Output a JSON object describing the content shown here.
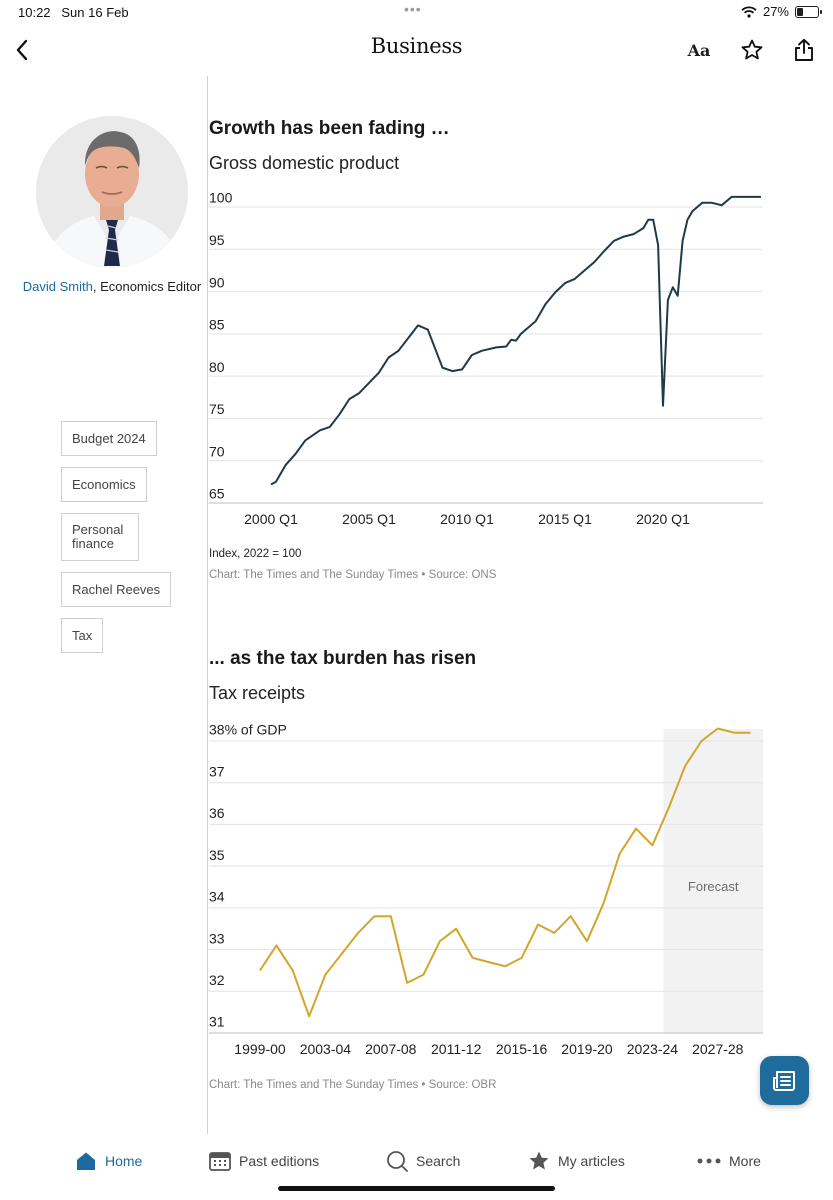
{
  "status_bar": {
    "time": "10:22",
    "date": "Sun 16 Feb",
    "battery": "27%"
  },
  "nav": {
    "title": "Business",
    "font_label": "Aa"
  },
  "author": {
    "name": "David Smith",
    "role": ", Economics Editor"
  },
  "tags": [
    "Budget 2024",
    "Economics",
    "Personal finance",
    "Rachel Reeves",
    "Tax"
  ],
  "charts": [
    {
      "title": "Growth has been fading …",
      "subtitle": "Gross domestic product",
      "note": "Index, 2022 = 100",
      "source": "Chart: The Times and The Sunday Times • Source: ONS"
    },
    {
      "title": "... as the tax burden has risen",
      "subtitle": "Tax receipts",
      "source": "Chart: The Times and The Sunday Times • Source: OBR",
      "forecast_label": "Forecast"
    }
  ],
  "chart_data": [
    {
      "type": "line",
      "title": "Gross domestic product",
      "ylabel": "Index, 2022 = 100",
      "ylim": [
        65,
        100
      ],
      "yticks": [
        "65",
        "70",
        "75",
        "80",
        "85",
        "90",
        "95",
        "100"
      ],
      "xticks": [
        "2000 Q1",
        "2005 Q1",
        "2010 Q1",
        "2015 Q1",
        "2020 Q1"
      ],
      "grid": true,
      "color": "#1e3a47",
      "series": [
        {
          "x": [
            2000.0,
            2000.25,
            2000.75,
            2001.25,
            2001.75,
            2002.5,
            2003.0,
            2003.5,
            2004.0,
            2004.5,
            2005.0,
            2005.5,
            2006.0,
            2006.5,
            2007.0,
            2007.5,
            2008.0,
            2008.25,
            2008.75,
            2009.25,
            2009.75,
            2010.25,
            2010.75,
            2011.5,
            2012.0,
            2012.25,
            2012.5,
            2012.75,
            2013.0,
            2013.5,
            2014.0,
            2014.5,
            2015.0,
            2015.5,
            2016.0,
            2016.5,
            2017.0,
            2017.5,
            2018.0,
            2018.5,
            2019.0,
            2019.25,
            2019.5,
            2019.75,
            2020.0,
            2020.25,
            2020.5,
            2020.75,
            2021.0,
            2021.25,
            2021.5,
            2021.75,
            2022.0,
            2022.5,
            2023.0,
            2023.5,
            2024.0,
            2024.25,
            2024.5,
            2025.0
          ],
          "y": [
            67.2,
            67.5,
            69.5,
            70.8,
            72.4,
            73.6,
            74.0,
            75.5,
            77.3,
            78.0,
            79.2,
            80.4,
            82.2,
            83.0,
            84.5,
            86.0,
            85.5,
            84.0,
            81.0,
            80.6,
            80.8,
            82.5,
            83.0,
            83.4,
            83.5,
            84.3,
            84.2,
            85.0,
            85.5,
            86.5,
            88.5,
            89.9,
            91.0,
            91.5,
            92.5,
            93.5,
            94.8,
            96.0,
            96.5,
            96.8,
            97.5,
            98.5,
            98.5,
            95.5,
            76.5,
            89.0,
            90.5,
            89.5,
            96.0,
            98.5,
            99.5,
            100.0,
            100.5,
            100.5,
            100.2,
            101.2,
            101.2,
            101.2,
            101.2,
            101.2
          ]
        }
      ]
    },
    {
      "type": "line",
      "title": "Tax receipts",
      "ylabel": "% of GDP",
      "ylim": [
        31,
        38
      ],
      "yticks": [
        "31",
        "32",
        "33",
        "34",
        "35",
        "36",
        "37",
        "38% of GDP"
      ],
      "xticks": [
        "1999-00",
        "2003-04",
        "2007-08",
        "2011-12",
        "2015-16",
        "2019-20",
        "2023-24",
        "2027-28"
      ],
      "forecast_from": "2023-24",
      "grid": true,
      "color": "#d4a52a",
      "categories": [
        "1999-00",
        "2000-01",
        "2001-02",
        "2002-03",
        "2003-04",
        "2004-05",
        "2005-06",
        "2006-07",
        "2007-08",
        "2008-09",
        "2009-10",
        "2010-11",
        "2011-12",
        "2012-13",
        "2013-14",
        "2014-15",
        "2015-16",
        "2016-17",
        "2017-18",
        "2018-19",
        "2019-20",
        "2020-21",
        "2021-22",
        "2022-23",
        "2023-24",
        "2024-25",
        "2025-26",
        "2026-27",
        "2027-28",
        "2028-29",
        "2029-30"
      ],
      "values": [
        32.5,
        33.1,
        32.5,
        31.4,
        32.4,
        32.9,
        33.4,
        33.8,
        33.8,
        32.2,
        32.4,
        33.2,
        33.5,
        32.8,
        32.7,
        32.6,
        32.8,
        33.6,
        33.4,
        33.8,
        33.2,
        34.1,
        35.3,
        35.9,
        35.5,
        36.4,
        37.4,
        38.0,
        38.3,
        38.2,
        38.2
      ]
    }
  ],
  "tab_bar": {
    "items": [
      "Home",
      "Past editions",
      "Search",
      "My articles",
      "More"
    ],
    "active": "Home"
  }
}
